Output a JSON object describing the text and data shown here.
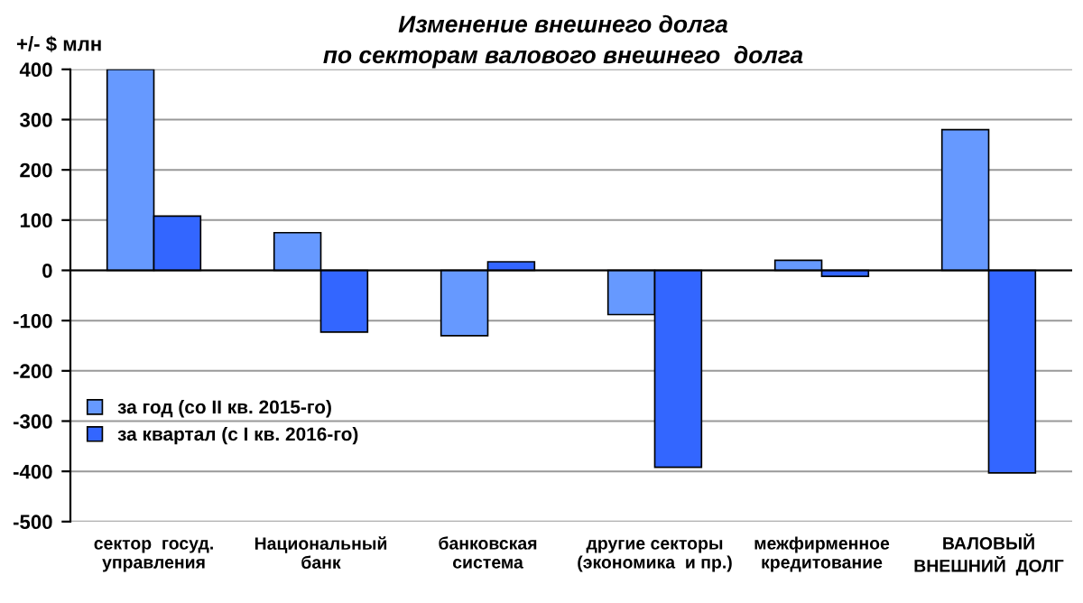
{
  "chart_data": {
    "type": "bar",
    "title": "Изменение внешнего долга\nпо секторам валового внешнего  долга",
    "ylabel": "+/- $ млн",
    "categories": [
      "сектор  госуд.\nуправления",
      "Национальный\nбанк",
      "банковская\nсистема",
      "другие секторы\n(экономика  и пр.)",
      "межфирменное\nкредитование",
      "ВАЛОВЫЙ\nВНЕШНИЙ  ДОЛГ"
    ],
    "series": [
      {
        "name": "за год (со II кв. 2015-го)",
        "color": "#6699ff",
        "values": [
          400,
          75,
          -130,
          -88,
          20,
          280
        ]
      },
      {
        "name": "за квартал (с I кв. 2016-го)",
        "color": "#3366ff",
        "values": [
          108,
          -123,
          17,
          -392,
          -12,
          -403
        ]
      }
    ],
    "ylim": [
      -500,
      400
    ],
    "yticks": [
      -500,
      -400,
      -300,
      -200,
      -100,
      0,
      100,
      200,
      300,
      400
    ],
    "grid": "y",
    "legend": "left"
  }
}
